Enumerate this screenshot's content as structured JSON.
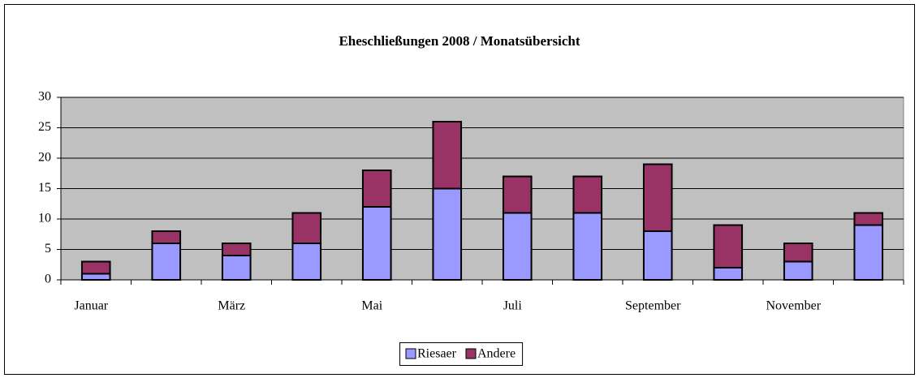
{
  "chart_data": {
    "type": "stacked_bar",
    "title": "Eheschließungen 2008 / Monatsübersicht",
    "categories": [
      "Januar",
      null,
      "März",
      null,
      "Mai",
      null,
      "Juli",
      null,
      "September",
      null,
      "November",
      null
    ],
    "series": [
      {
        "name": "Riesaer",
        "color": "#9999ff",
        "values": [
          1,
          6,
          4,
          6,
          12,
          15,
          11,
          11,
          8,
          2,
          3,
          9
        ]
      },
      {
        "name": "Andere",
        "color": "#993366",
        "values": [
          2,
          2,
          2,
          5,
          6,
          11,
          6,
          6,
          11,
          7,
          3,
          2
        ]
      }
    ],
    "ylim": [
      0,
      30
    ],
    "yticks": [
      0,
      5,
      10,
      15,
      20,
      25,
      30
    ],
    "grid": true,
    "legend": "bottom"
  }
}
